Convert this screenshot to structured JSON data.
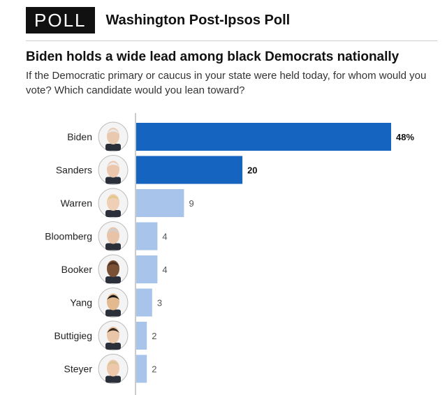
{
  "header": {
    "badge": "POLL",
    "title": "Washington Post-Ipsos Poll"
  },
  "chart_data": {
    "type": "bar",
    "orientation": "horizontal",
    "title": "Biden holds a wide lead among black Democrats nationally",
    "subtitle": "If the Democratic primary or caucus in your state were held today, for whom would you vote? Which candidate would you lean toward?",
    "categories": [
      "Biden",
      "Sanders",
      "Warren",
      "Bloomberg",
      "Booker",
      "Yang",
      "Buttigieg",
      "Steyer"
    ],
    "values": [
      48,
      20,
      9,
      4,
      4,
      3,
      2,
      2
    ],
    "value_labels": [
      "48%",
      "20",
      "9",
      "4",
      "4",
      "3",
      "2",
      "2"
    ],
    "xlim": [
      0,
      48
    ],
    "grid": false,
    "colors": {
      "highlight": "#1565c0",
      "muted": "#a9c4ea",
      "highlight_label": "#111111",
      "muted_label": "#555555"
    },
    "highlight_count": 2,
    "portrait_icons": [
      "biden-portrait-icon",
      "sanders-portrait-icon",
      "warren-portrait-icon",
      "bloomberg-portrait-icon",
      "booker-portrait-icon",
      "yang-portrait-icon",
      "buttigieg-portrait-icon",
      "steyer-portrait-icon"
    ]
  }
}
